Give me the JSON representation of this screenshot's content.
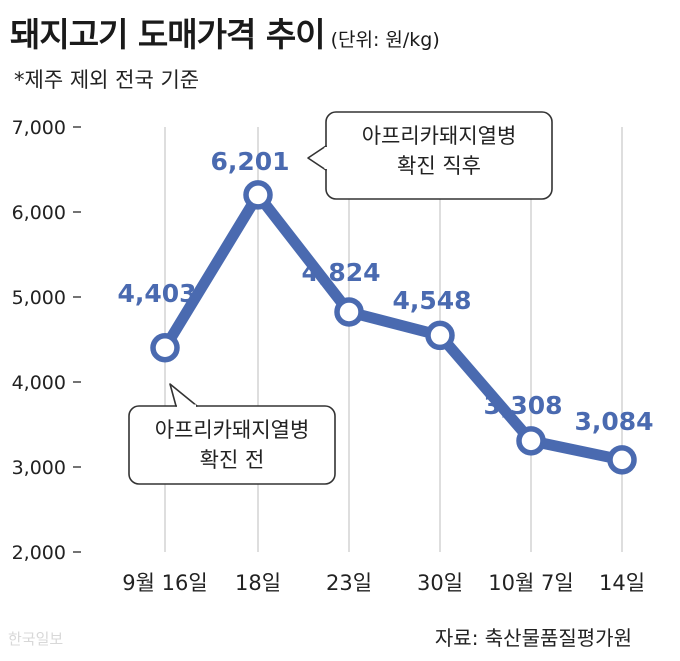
{
  "header": {
    "title": "돼지고기 도매가격 추이",
    "unit": "(단위: 원/kg)",
    "note": "*제주 제외 전국 기준"
  },
  "footer": {
    "source": "자료: 축산물품질평가원",
    "watermark": "한국일보"
  },
  "colors": {
    "line": "#4a6ab0",
    "marker_fill": "#ffffff",
    "label": "#4a6ab0"
  },
  "chart_data": {
    "type": "line",
    "title": "돼지고기 도매가격 추이",
    "categories": [
      "9월 16일",
      "18일",
      "23일",
      "30일",
      "10월 7일",
      "14일"
    ],
    "series": [
      {
        "values": [
          4403,
          6201,
          4824,
          4548,
          3308,
          3084
        ],
        "labels": [
          "4,403",
          "6,201",
          "4,824",
          "4,548",
          "3,308",
          "3,084"
        ]
      }
    ],
    "ylim": [
      2000,
      7000
    ],
    "yticks": [
      2000,
      3000,
      4000,
      5000,
      6000,
      7000
    ],
    "ytick_labels": [
      "2,000",
      "3,000",
      "4,000",
      "5,000",
      "6,000",
      "7,000"
    ],
    "grid": "vertical",
    "annotations": [
      {
        "category_index": 0,
        "lines": [
          "아프리카돼지열병",
          "확진 전"
        ]
      },
      {
        "category_index": 1,
        "lines": [
          "아프리카돼지열병",
          "확진 직후"
        ]
      }
    ]
  }
}
